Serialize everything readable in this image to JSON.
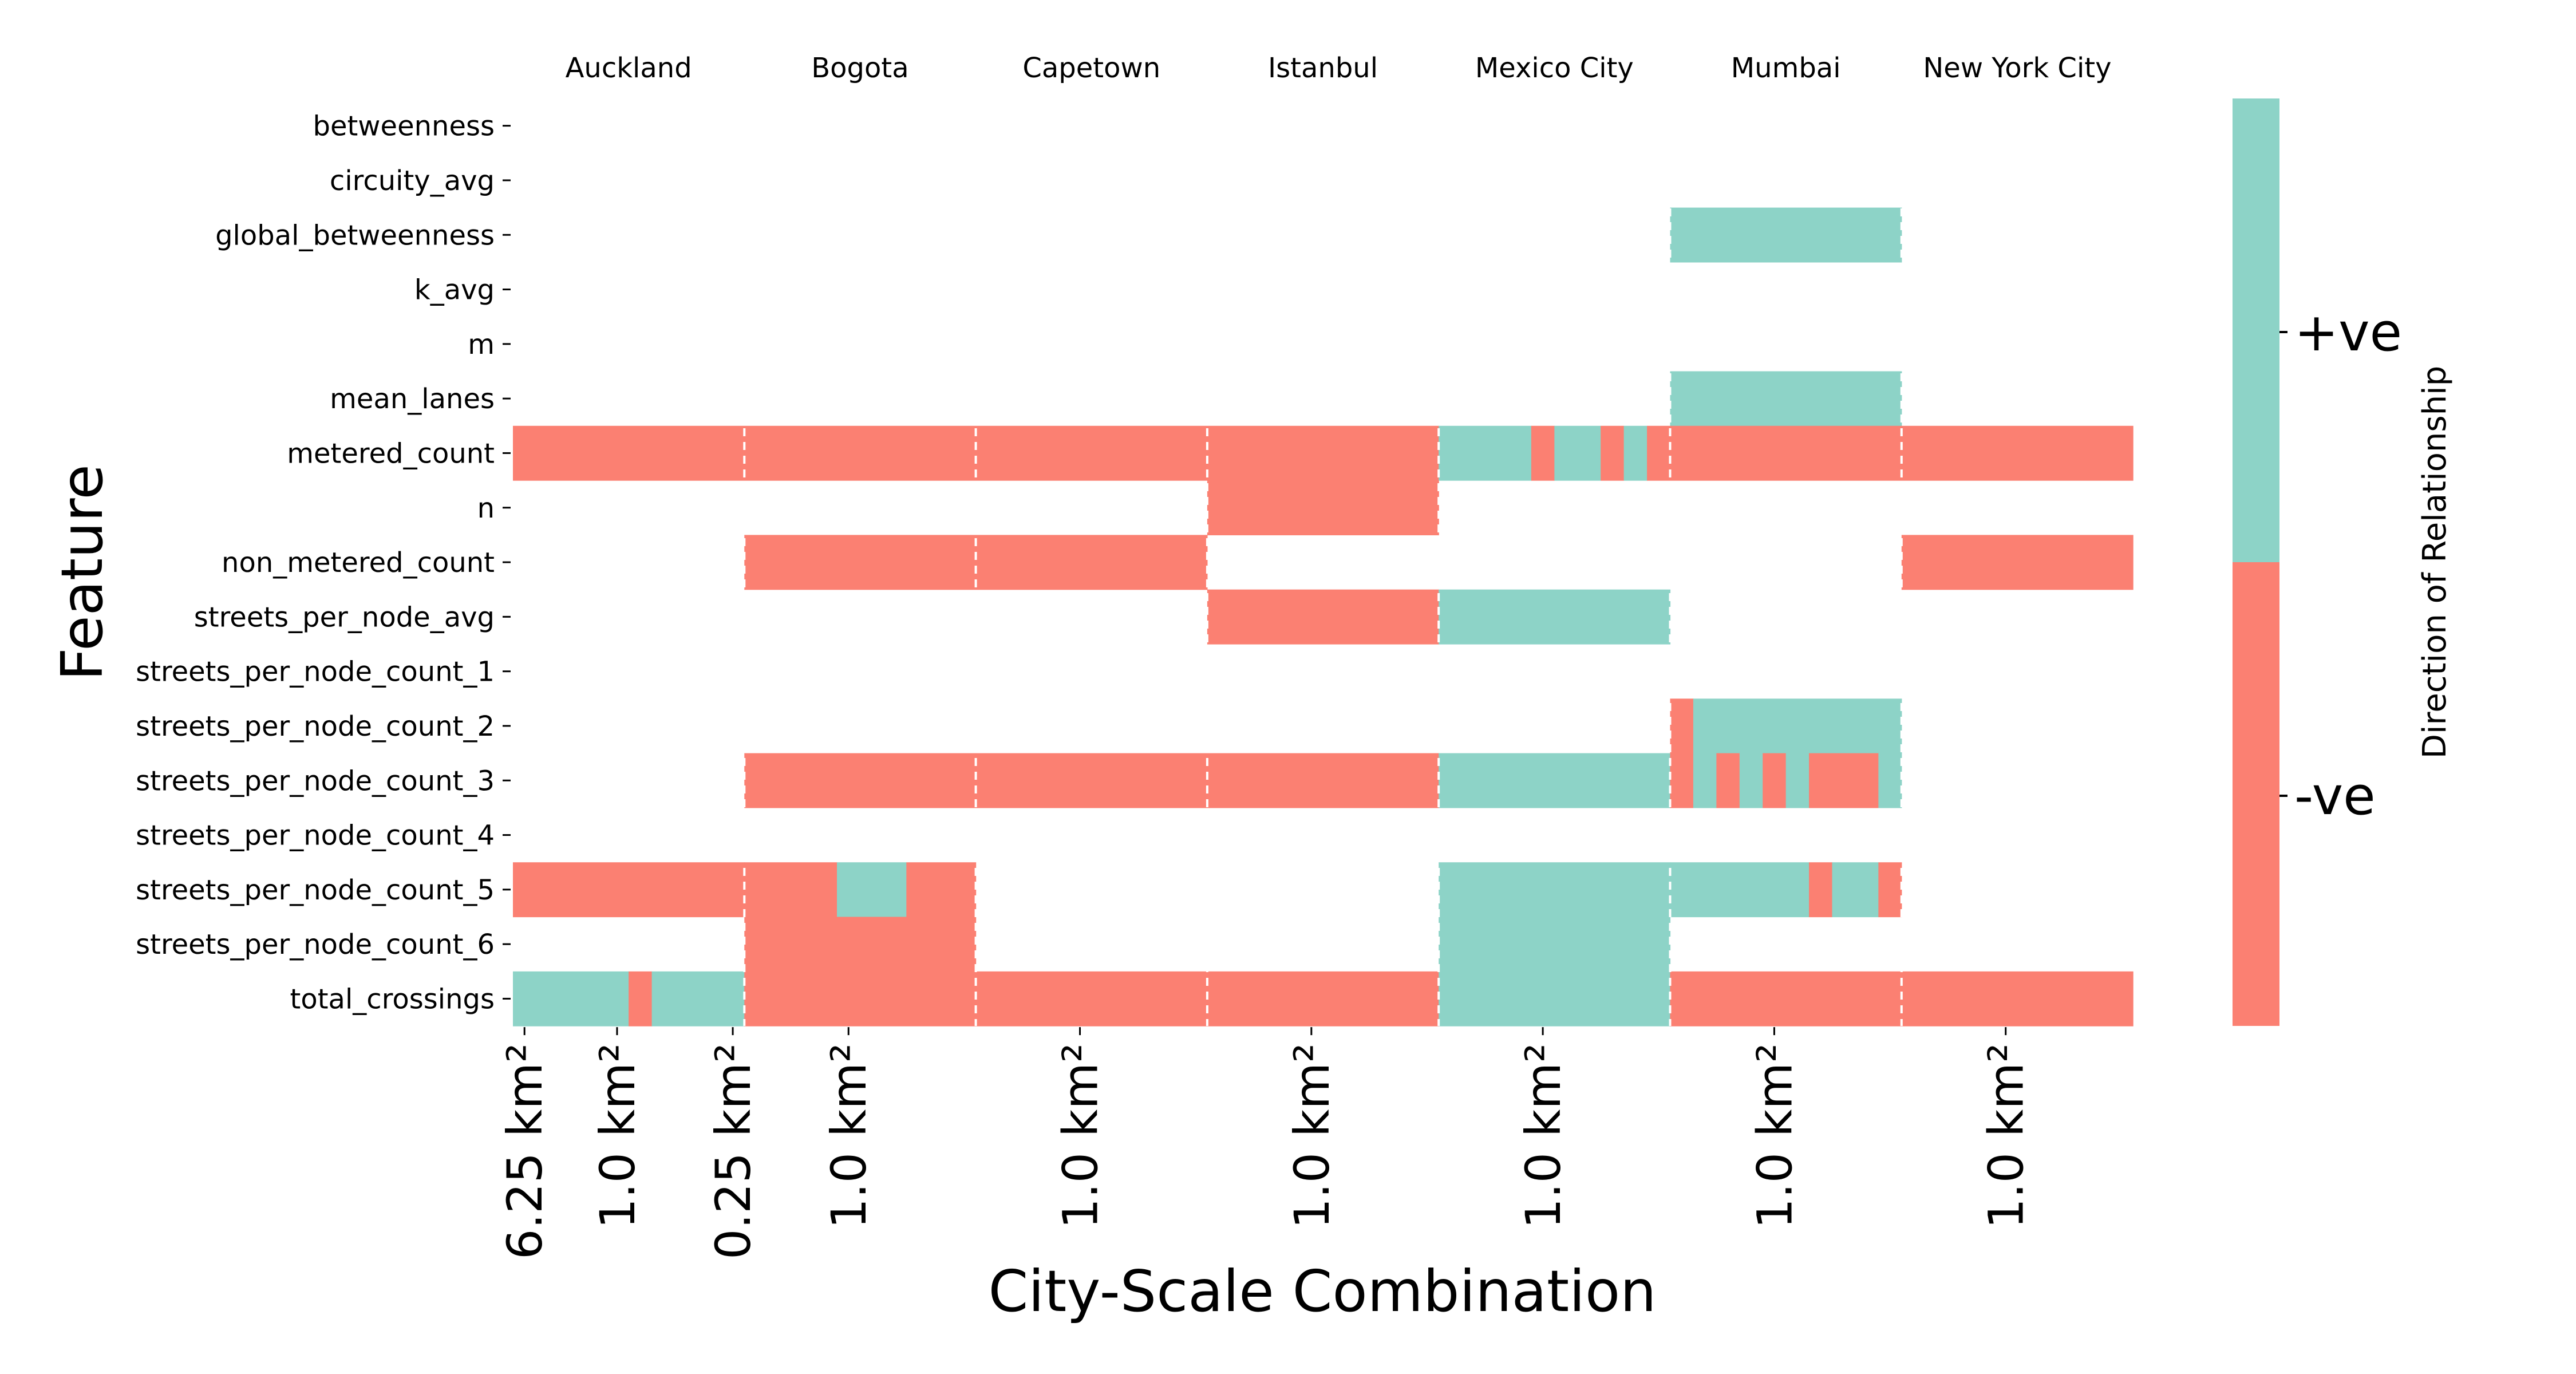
{
  "chart_data": {
    "type": "heatmap",
    "title": "",
    "xlabel": "City-Scale Combination",
    "ylabel": "Feature",
    "cities": [
      "Auckland",
      "Bogota",
      "Capetown",
      "Istanbul",
      "Mexico City",
      "Mumbai",
      "New York City"
    ],
    "features": [
      "betweenness",
      "circuity_avg",
      "global_betweenness",
      "k_avg",
      "m",
      "mean_lanes",
      "metered_count",
      "n",
      "non_metered_count",
      "streets_per_node_avg",
      "streets_per_node_count_1",
      "streets_per_node_count_2",
      "streets_per_node_count_3",
      "streets_per_node_count_4",
      "streets_per_node_count_5",
      "streets_per_node_count_6",
      "total_crossings"
    ],
    "columns_per_city": 10,
    "x_tick_labels": [
      {
        "col": 0.5,
        "text": "6.25 km²"
      },
      {
        "col": 4.5,
        "text": "1.0 km²"
      },
      {
        "col": 9.5,
        "text": "0.25 km²"
      },
      {
        "col": 14.5,
        "text": "1.0 km²"
      },
      {
        "col": 24.5,
        "text": "1.0 km²"
      },
      {
        "col": 34.5,
        "text": "1.0 km²"
      },
      {
        "col": 44.5,
        "text": "1.0 km²"
      },
      {
        "col": 54.5,
        "text": "1.0 km²"
      },
      {
        "col": 64.5,
        "text": "1.0 km²"
      }
    ],
    "cell_values": "Each entry: [feature_index, start_col, end_col_exclusive, value]; value 1 = +ve, -1 = -ve",
    "cells": [
      [
        2,
        50,
        60,
        1
      ],
      [
        5,
        50,
        60,
        1
      ],
      [
        6,
        0,
        40,
        -1
      ],
      [
        6,
        40,
        44,
        1
      ],
      [
        6,
        44,
        45,
        -1
      ],
      [
        6,
        45,
        47,
        1
      ],
      [
        6,
        47,
        48,
        -1
      ],
      [
        6,
        48,
        49,
        1
      ],
      [
        6,
        49,
        70,
        -1
      ],
      [
        7,
        30,
        40,
        -1
      ],
      [
        8,
        10,
        30,
        -1
      ],
      [
        8,
        60,
        70,
        -1
      ],
      [
        9,
        30,
        40,
        -1
      ],
      [
        9,
        40,
        50,
        1
      ],
      [
        11,
        50,
        51,
        -1
      ],
      [
        11,
        51,
        60,
        1
      ],
      [
        12,
        10,
        40,
        -1
      ],
      [
        12,
        40,
        50,
        1
      ],
      [
        12,
        50,
        51,
        -1
      ],
      [
        12,
        51,
        52,
        1
      ],
      [
        12,
        52,
        53,
        -1
      ],
      [
        12,
        53,
        54,
        1
      ],
      [
        12,
        54,
        55,
        -1
      ],
      [
        12,
        55,
        56,
        1
      ],
      [
        12,
        56,
        59,
        -1
      ],
      [
        12,
        59,
        60,
        1
      ],
      [
        14,
        0,
        10,
        -1
      ],
      [
        14,
        10,
        14,
        -1
      ],
      [
        14,
        14,
        17,
        1
      ],
      [
        14,
        17,
        20,
        -1
      ],
      [
        14,
        40,
        50,
        1
      ],
      [
        14,
        50,
        56,
        1
      ],
      [
        14,
        56,
        57,
        -1
      ],
      [
        14,
        57,
        59,
        1
      ],
      [
        14,
        59,
        60,
        -1
      ],
      [
        15,
        10,
        20,
        -1
      ],
      [
        15,
        40,
        50,
        1
      ],
      [
        16,
        0,
        5,
        1
      ],
      [
        16,
        5,
        6,
        -1
      ],
      [
        16,
        6,
        10,
        1
      ],
      [
        16,
        10,
        40,
        -1
      ],
      [
        16,
        40,
        50,
        1
      ],
      [
        16,
        50,
        70,
        -1
      ]
    ],
    "colorbar": {
      "label": "Direction of Relationship",
      "ticks": [
        "+ve",
        "-ve"
      ],
      "positive_color": "#8dd3c7",
      "negative_color": "#fb8072"
    },
    "grid": false,
    "legend": "colorbar-right"
  }
}
